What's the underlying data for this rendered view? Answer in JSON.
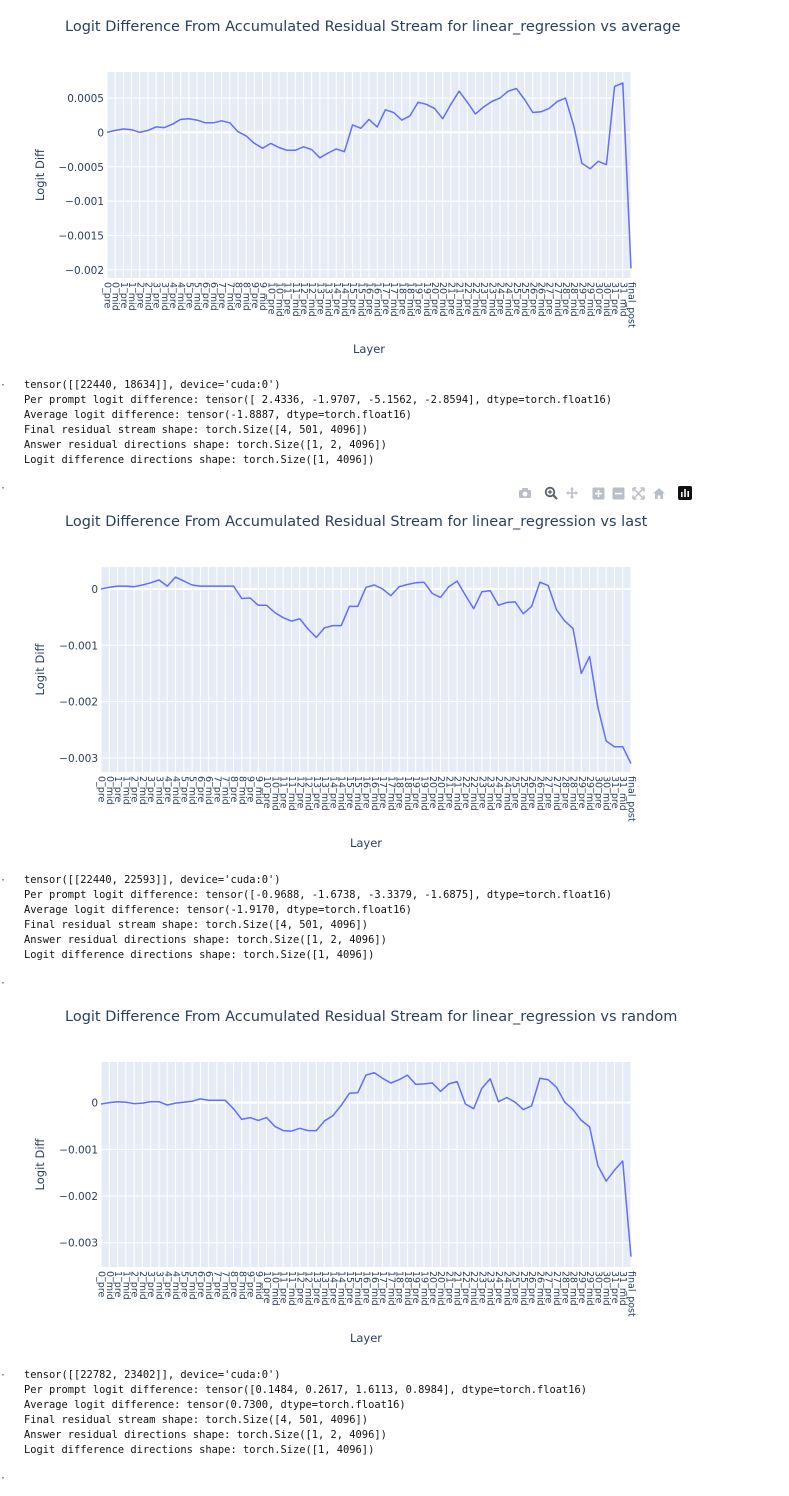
{
  "charts": [
    {
      "title": "Logit Difference From Accumulated Residual Stream for linear_regression vs average",
      "ylabel": "Logit Diff",
      "xlabel": "Layer",
      "yticks": [
        {
          "value": 0.0005,
          "label": "0.0005"
        },
        {
          "value": 0,
          "label": "0"
        },
        {
          "value": -0.0005,
          "label": "−0.0005"
        },
        {
          "value": -0.001,
          "label": "−0.001"
        },
        {
          "value": -0.0015,
          "label": "−0.0015"
        },
        {
          "value": -0.002,
          "label": "−0.002"
        }
      ]
    },
    {
      "title": "Logit Difference From Accumulated Residual Stream for linear_regression vs last",
      "ylabel": "Logit Diff",
      "xlabel": "Layer",
      "yticks": [
        {
          "value": 0,
          "label": "0"
        },
        {
          "value": -0.001,
          "label": "−0.001"
        },
        {
          "value": -0.002,
          "label": "−0.002"
        },
        {
          "value": -0.003,
          "label": "−0.003"
        }
      ]
    },
    {
      "title": "Logit Difference From Accumulated Residual Stream for linear_regression vs random",
      "ylabel": "Logit Diff",
      "xlabel": "Layer",
      "yticks": [
        {
          "value": 0,
          "label": "0"
        },
        {
          "value": -0.001,
          "label": "−0.001"
        },
        {
          "value": -0.002,
          "label": "−0.002"
        },
        {
          "value": -0.003,
          "label": "−0.003"
        }
      ]
    }
  ],
  "chart_data": [
    {
      "type": "line",
      "title": "Logit Difference From Accumulated Residual Stream for linear_regression vs average",
      "xlabel": "Layer",
      "ylabel": "Logit Diff",
      "ylim": [
        -0.00212,
        0.00088
      ],
      "grid": true,
      "series_color": "#636efa",
      "categories": [
        "0_pre",
        "0_mid",
        "1_pre",
        "1_mid",
        "2_pre",
        "2_mid",
        "3_pre",
        "3_mid",
        "4_pre",
        "4_mid",
        "5_pre",
        "5_mid",
        "6_pre",
        "6_mid",
        "7_pre",
        "7_mid",
        "8_pre",
        "8_mid",
        "9_pre",
        "9_mid",
        "10_pre",
        "10_mid",
        "11_pre",
        "11_mid",
        "12_pre",
        "12_mid",
        "13_pre",
        "13_mid",
        "14_pre",
        "14_mid",
        "15_pre",
        "15_mid",
        "16_pre",
        "16_mid",
        "17_pre",
        "17_mid",
        "18_pre",
        "18_mid",
        "19_pre",
        "19_mid",
        "20_pre",
        "20_mid",
        "21_pre",
        "21_mid",
        "22_pre",
        "22_mid",
        "23_pre",
        "23_mid",
        "24_pre",
        "24_mid",
        "25_pre",
        "25_mid",
        "26_pre",
        "26_mid",
        "27_pre",
        "27_mid",
        "28_pre",
        "28_mid",
        "29_pre",
        "29_mid",
        "30_pre",
        "30_mid",
        "31_pre",
        "31_mid",
        "final_post"
      ],
      "values": [
        0,
        3e-05,
        5e-05,
        4e-05,
        0,
        3e-05,
        8e-05,
        7e-05,
        0.00012,
        0.00019,
        0.0002,
        0.00018,
        0.00014,
        0.00014,
        0.00017,
        0.00014,
        1e-05,
        -5e-05,
        -0.00016,
        -0.00023,
        -0.00016,
        -0.00022,
        -0.00026,
        -0.00026,
        -0.00021,
        -0.00025,
        -0.00037,
        -0.0003,
        -0.00024,
        -0.00028,
        0.00011,
        6e-05,
        0.00019,
        8e-05,
        0.00033,
        0.00029,
        0.00018,
        0.00024,
        0.00044,
        0.00041,
        0.00035,
        0.0002,
        0.00041,
        0.0006,
        0.00044,
        0.00027,
        0.00037,
        0.00045,
        0.0005,
        0.0006,
        0.00064,
        0.00048,
        0.00029,
        0.0003,
        0.00035,
        0.00045,
        0.0005,
        0.0001,
        -0.00045,
        -0.00053,
        -0.00042,
        -0.00047,
        0.00067,
        0.00072,
        -0.00198
      ]
    },
    {
      "type": "line",
      "title": "Logit Difference From Accumulated Residual Stream for linear_regression vs last",
      "xlabel": "Layer",
      "ylabel": "Logit Diff",
      "ylim": [
        -0.00325,
        0.00039
      ],
      "grid": true,
      "series_color": "#636efa",
      "categories": [
        "0_pre",
        "0_mid",
        "1_pre",
        "1_mid",
        "2_pre",
        "2_mid",
        "3_pre",
        "3_mid",
        "4_pre",
        "4_mid",
        "5_pre",
        "5_mid",
        "6_pre",
        "6_mid",
        "7_pre",
        "7_mid",
        "8_pre",
        "8_mid",
        "9_pre",
        "9_mid",
        "10_pre",
        "10_mid",
        "11_pre",
        "11_mid",
        "12_pre",
        "12_mid",
        "13_pre",
        "13_mid",
        "14_pre",
        "14_mid",
        "15_pre",
        "15_mid",
        "16_pre",
        "16_mid",
        "17_pre",
        "17_mid",
        "18_pre",
        "18_mid",
        "19_pre",
        "19_mid",
        "20_pre",
        "20_mid",
        "21_pre",
        "21_mid",
        "22_pre",
        "22_mid",
        "23_pre",
        "23_mid",
        "24_pre",
        "24_mid",
        "25_pre",
        "25_mid",
        "26_pre",
        "26_mid",
        "27_pre",
        "27_mid",
        "28_pre",
        "28_mid",
        "29_pre",
        "29_mid",
        "30_pre",
        "30_mid",
        "31_pre",
        "31_mid",
        "final_post"
      ],
      "values": [
        0,
        3e-05,
        5e-05,
        5e-05,
        4e-05,
        7e-05,
        0.00011,
        0.00016,
        5e-05,
        0.00021,
        0.00014,
        7e-05,
        5e-05,
        5e-05,
        5e-05,
        5e-05,
        5e-05,
        -0.00017,
        -0.00016,
        -0.00029,
        -0.00029,
        -0.00042,
        -0.00051,
        -0.00057,
        -0.00053,
        -0.00071,
        -0.00086,
        -0.00069,
        -0.00065,
        -0.00065,
        -0.00031,
        -0.00031,
        3e-05,
        7e-05,
        0,
        -0.00012,
        4e-05,
        8e-05,
        0.00011,
        0.00012,
        -8e-05,
        -0.00015,
        4e-05,
        0.00014,
        -0.00011,
        -0.00035,
        -5e-05,
        -3e-05,
        -0.00029,
        -0.00024,
        -0.00023,
        -0.00044,
        -0.00031,
        0.00012,
        6e-05,
        -0.00037,
        -0.00057,
        -0.0007,
        -0.0015,
        -0.0012,
        -0.0021,
        -0.0027,
        -0.0028,
        -0.0028,
        -0.0031
      ]
    },
    {
      "type": "line",
      "title": "Logit Difference From Accumulated Residual Stream for linear_regression vs random",
      "xlabel": "Layer",
      "ylabel": "Logit Diff",
      "ylim": [
        -0.00352,
        0.00087
      ],
      "grid": true,
      "series_color": "#636efa",
      "categories": [
        "0_pre",
        "0_mid",
        "1_pre",
        "1_mid",
        "2_pre",
        "2_mid",
        "3_pre",
        "3_mid",
        "4_pre",
        "4_mid",
        "5_pre",
        "5_mid",
        "6_pre",
        "6_mid",
        "7_pre",
        "7_mid",
        "8_pre",
        "8_mid",
        "9_pre",
        "9_mid",
        "10_pre",
        "10_mid",
        "11_pre",
        "11_mid",
        "12_pre",
        "12_mid",
        "13_pre",
        "13_mid",
        "14_pre",
        "14_mid",
        "15_pre",
        "15_mid",
        "16_pre",
        "16_mid",
        "17_pre",
        "17_mid",
        "18_pre",
        "18_mid",
        "19_pre",
        "19_mid",
        "20_pre",
        "20_mid",
        "21_pre",
        "21_mid",
        "22_pre",
        "22_mid",
        "23_pre",
        "23_mid",
        "24_pre",
        "24_mid",
        "25_pre",
        "25_mid",
        "26_pre",
        "26_mid",
        "27_pre",
        "27_mid",
        "28_pre",
        "28_mid",
        "29_pre",
        "29_mid",
        "30_pre",
        "30_mid",
        "31_pre",
        "31_mid",
        "final_post"
      ],
      "values": [
        -3e-05,
        0,
        2e-05,
        1e-05,
        -2e-05,
        -1e-05,
        2e-05,
        2e-05,
        -5e-05,
        -1e-05,
        1e-05,
        3e-05,
        8e-05,
        5e-05,
        5e-05,
        5e-05,
        -0.00013,
        -0.00036,
        -0.00032,
        -0.00038,
        -0.00032,
        -0.00051,
        -0.0006,
        -0.00061,
        -0.00055,
        -0.0006,
        -0.0006,
        -0.00039,
        -0.00028,
        -6e-05,
        0.0002,
        0.00021,
        0.00059,
        0.00064,
        0.00052,
        0.00042,
        0.00049,
        0.00059,
        0.00039,
        0.0004,
        0.00042,
        0.00024,
        0.0004,
        0.00045,
        -3e-05,
        -0.00013,
        0.00031,
        0.00051,
        2e-05,
        0.00011,
        1e-05,
        -0.00015,
        -7e-05,
        0.00052,
        0.00049,
        0.00033,
        1e-05,
        -0.00015,
        -0.00038,
        -0.00052,
        -0.00135,
        -0.00168,
        -0.00145,
        -0.00125,
        -0.0033
      ]
    }
  ],
  "outputs": [
    {
      "lines": [
        "tensor([[22440, 18634]], device='cuda:0')",
        "Per prompt logit difference: tensor([ 2.4336, -1.9707, -5.1562, -2.8594], dtype=torch.float16)",
        "Average logit difference: tensor(-1.8887, dtype=torch.float16)",
        "Final residual stream shape: torch.Size([4, 501, 4096])",
        "Answer residual directions shape: torch.Size([1, 2, 4096])",
        "Logit difference directions shape: torch.Size([1, 4096])"
      ]
    },
    {
      "lines": [
        "tensor([[22440, 22593]], device='cuda:0')",
        "Per prompt logit difference: tensor([-0.9688, -1.6738, -3.3379, -1.6875], dtype=torch.float16)",
        "Average logit difference: tensor(-1.9170, dtype=torch.float16)",
        "Final residual stream shape: torch.Size([4, 501, 4096])",
        "Answer residual directions shape: torch.Size([1, 2, 4096])",
        "Logit difference directions shape: torch.Size([1, 4096])"
      ]
    },
    {
      "lines": [
        "tensor([[22782, 23402]], device='cuda:0')",
        "Per prompt logit difference: tensor([0.1484, 0.2617, 1.6113, 0.8984], dtype=torch.float16)",
        "Average logit difference: tensor(0.7300, dtype=torch.float16)",
        "Final residual stream shape: torch.Size([4, 501, 4096])",
        "Answer residual directions shape: torch.Size([1, 2, 4096])",
        "Logit difference directions shape: torch.Size([1, 4096])"
      ]
    }
  ],
  "modebar": {
    "icons": [
      "camera-icon",
      "zoom-icon",
      "pan-icon",
      "zoom-in-icon",
      "zoom-out-icon",
      "autoscale-icon",
      "reset-axes-icon",
      "plotly-logo-icon"
    ]
  },
  "colors": {
    "plot_bg": "#e5ecf6",
    "line": "#636efa",
    "title": "#2a3f5f",
    "tick": "#2a3f5f"
  }
}
